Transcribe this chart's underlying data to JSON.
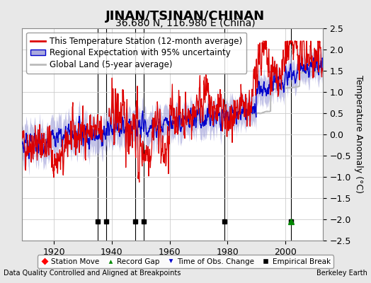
{
  "title": "JINAN/TSINAN/CHINAN",
  "subtitle": "36.680 N, 116.980 E (China)",
  "ylabel": "Temperature Anomaly (°C)",
  "xlabel_bottom": "Data Quality Controlled and Aligned at Breakpoints",
  "credit": "Berkeley Earth",
  "ylim": [
    -2.5,
    2.5
  ],
  "xlim": [
    1909,
    2013
  ],
  "yticks": [
    -2.5,
    -2,
    -1.5,
    -1,
    -0.5,
    0,
    0.5,
    1,
    1.5,
    2,
    2.5
  ],
  "xticks": [
    1920,
    1940,
    1960,
    1980,
    2000
  ],
  "bg_color": "#e8e8e8",
  "plot_bg_color": "#ffffff",
  "grid_color": "#cccccc",
  "red_color": "#dd0000",
  "blue_color": "#0000cc",
  "blue_fill_color": "#aaaadd",
  "gray_color": "#bbbbbb",
  "empirical_breaks": [
    1935,
    1938,
    1948,
    1951,
    1979,
    2002
  ],
  "record_gap": [
    2002
  ],
  "title_fontsize": 13,
  "subtitle_fontsize": 10,
  "tick_fontsize": 9,
  "legend_fontsize": 8.5,
  "seed": 42
}
